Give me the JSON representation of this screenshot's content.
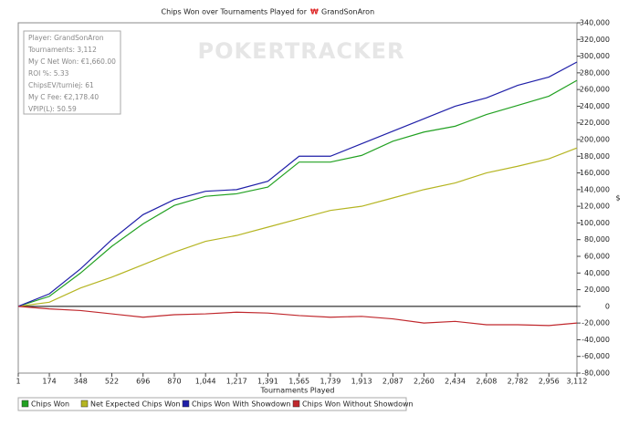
{
  "chart_data": {
    "type": "line",
    "title": "Chips Won over Tournaments Played for",
    "title_player": "GrandSonAron",
    "watermark": "POKERTRACKER",
    "annotations": [
      "Player: GrandSonAron",
      "Tournaments: 3,112",
      "My C Net Won: €1,660.00",
      "ROI %: 5.33",
      "ChipsEV/turniej: 61",
      "My C Fee: €2,178.40",
      "VPIP(L): 50.59"
    ],
    "x_label": "Tournaments Played",
    "y_label": "$",
    "x": [
      1,
      174,
      348,
      522,
      696,
      870,
      1044,
      1217,
      1391,
      1565,
      1739,
      1913,
      2087,
      2260,
      2434,
      2608,
      2782,
      2956,
      3112
    ],
    "series": [
      {
        "name": "Chips Won",
        "color": "#22a122",
        "values": [
          0,
          12000,
          40000,
          72000,
          99000,
          121000,
          132000,
          135000,
          143000,
          173000,
          173000,
          181000,
          198000,
          209000,
          216000,
          230000,
          241000,
          252000,
          271000
        ]
      },
      {
        "name": "Net Expected Chips Won",
        "color": "#b5b522",
        "values": [
          0,
          5000,
          22000,
          35000,
          50000,
          65000,
          78000,
          85000,
          95000,
          105000,
          115000,
          120000,
          130000,
          140000,
          148000,
          160000,
          168000,
          177000,
          190000
        ]
      },
      {
        "name": "Chips Won With Showdown",
        "color": "#1f1fa8",
        "values": [
          0,
          15000,
          45000,
          80000,
          110000,
          128000,
          138000,
          140000,
          150000,
          180000,
          180000,
          195000,
          210000,
          225000,
          240000,
          250000,
          265000,
          275000,
          293000
        ]
      },
      {
        "name": "Chips Won Without Showdown",
        "color": "#c0282d",
        "values": [
          0,
          -3000,
          -5000,
          -9000,
          -13000,
          -10000,
          -9000,
          -7000,
          -8000,
          -11000,
          -13000,
          -12000,
          -15000,
          -20000,
          -18000,
          -22000,
          -22000,
          -23000,
          -20000
        ]
      }
    ],
    "xlim": [
      1,
      3112
    ],
    "xticks": [
      1,
      174,
      348,
      522,
      696,
      870,
      {
        "value": 1044,
        "label": "1,044"
      },
      {
        "value": 1217,
        "label": "1,217"
      },
      {
        "value": 1391,
        "label": "1,391"
      },
      {
        "value": 1565,
        "label": "1,565"
      },
      {
        "value": 1739,
        "label": "1,739"
      },
      {
        "value": 1913,
        "label": "1,913"
      },
      {
        "value": 2087,
        "label": "2,087"
      },
      {
        "value": 2260,
        "label": "2,260"
      },
      {
        "value": 2434,
        "label": "2,434"
      },
      {
        "value": 2608,
        "label": "2,608"
      },
      {
        "value": 2782,
        "label": "2,782"
      },
      {
        "value": 2956,
        "label": "2,956"
      },
      {
        "value": 3112,
        "label": "3,112"
      }
    ],
    "ylim": [
      -80000,
      340000
    ],
    "yticks": [
      {
        "value": 340000,
        "label": "340,000"
      },
      {
        "value": 320000,
        "label": "320,000"
      },
      {
        "value": 300000,
        "label": "300,000"
      },
      {
        "value": 280000,
        "label": "280,000"
      },
      {
        "value": 260000,
        "label": "260,000"
      },
      {
        "value": 240000,
        "label": "240,000"
      },
      {
        "value": 220000,
        "label": "220,000"
      },
      {
        "value": 200000,
        "label": "200,000"
      },
      {
        "value": 180000,
        "label": "180,000"
      },
      {
        "value": 160000,
        "label": "160,000"
      },
      {
        "value": 140000,
        "label": "140,000"
      },
      {
        "value": 120000,
        "label": "120,000"
      },
      {
        "value": 100000,
        "label": "100,000"
      },
      {
        "value": 80000,
        "label": "80,000"
      },
      {
        "value": 60000,
        "label": "60,000"
      },
      {
        "value": 40000,
        "label": "40,000"
      },
      {
        "value": 20000,
        "label": "20,000"
      },
      0,
      {
        "value": -20000,
        "label": "-20,000"
      },
      {
        "value": -40000,
        "label": "-40,000"
      },
      {
        "value": -60000,
        "label": "-60,000"
      },
      {
        "value": -80000,
        "label": "-80,000"
      }
    ]
  }
}
